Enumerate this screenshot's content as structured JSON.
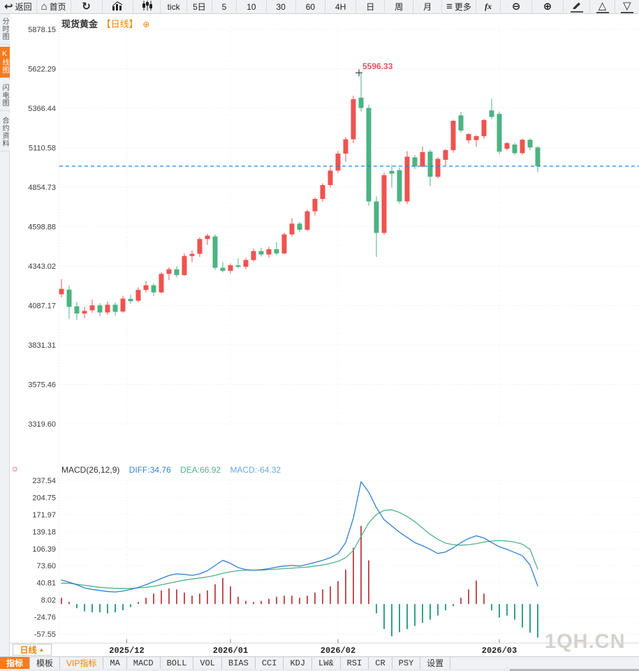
{
  "icons": {
    "back": "↩",
    "home": "⌂",
    "refresh": "↻",
    "more": "≡",
    "zoom_out": "⊖",
    "zoom_in": "⊕",
    "triangle_up": "△",
    "triangle_down": "▽",
    "sun": "☼",
    "add_circle": "⊕",
    "arrow_up": "▲"
  },
  "toolbar": {
    "items": [
      {
        "label": "返回"
      },
      {
        "label": "首页"
      },
      {
        "label": ""
      },
      {
        "label": ""
      },
      {
        "label": ""
      },
      {
        "label": "tick"
      },
      {
        "label": "5日"
      },
      {
        "label": "5"
      },
      {
        "label": "10"
      },
      {
        "label": "30"
      },
      {
        "label": "60"
      },
      {
        "label": "4H"
      },
      {
        "label": "日"
      },
      {
        "label": "周"
      },
      {
        "label": "月"
      },
      {
        "label": "更多"
      },
      {
        "label": "fx"
      }
    ]
  },
  "sidebar": {
    "tabs": [
      {
        "label": "分时图",
        "active": false
      },
      {
        "label": "K线图",
        "active": true
      },
      {
        "label": "闪电图",
        "active": false
      },
      {
        "label": "合约资料",
        "active": false
      }
    ]
  },
  "chart_header": {
    "symbol": "现货黄金",
    "period_tag": "【日线】"
  },
  "price_marker": {
    "value": "5596.33"
  },
  "macd_header": {
    "title": "MACD(26,12,9)",
    "diff_label": "DIFF:34.76",
    "dea_label": "DEA:66.92",
    "macd_label": "MACD:-64.32"
  },
  "xaxis": {
    "period": "日线"
  },
  "bottom_tabs": {
    "items": [
      {
        "label": "指标"
      },
      {
        "label": "模板"
      },
      {
        "label": "VIP指标"
      },
      {
        "label": "MA"
      },
      {
        "label": "MACD"
      },
      {
        "label": "BOLL"
      },
      {
        "label": "VOL"
      },
      {
        "label": "BIAS"
      },
      {
        "label": "CCI"
      },
      {
        "label": "KDJ"
      },
      {
        "label": "LW&"
      },
      {
        "label": "RSI"
      },
      {
        "label": "CR"
      },
      {
        "label": "PSY"
      },
      {
        "label": "设置"
      }
    ]
  },
  "watermark": "1QH.CN",
  "colors": {
    "up": "#ef5350",
    "down": "#4cb383",
    "diff_line": "#2f7fd0",
    "dea_line": "#4fb286",
    "hist_pos": "#c25053",
    "hist_neg": "#35a183",
    "current_price_line": "#1f83e8",
    "accent_orange": "#f47b20",
    "grid": "#e9e9e9",
    "axis_text": "#3c3c3c"
  },
  "chart_data": [
    {
      "type": "candlestick",
      "title": "现货黄金 日线",
      "y_ticks": [
        "5878.15",
        "5622.29",
        "5366.44",
        "5110.58",
        "4854.73",
        "4598.88",
        "4343.02",
        "4087.17",
        "3831.31",
        "3575.46",
        "3319.60"
      ],
      "ylim": [
        3319.6,
        5878.15
      ],
      "current_price": 4990.6,
      "high_marker": {
        "value": 5596.33,
        "candle_index": 39
      },
      "x_ticks": [
        {
          "label": "2025/12",
          "index": 8.5
        },
        {
          "label": "2026/01",
          "index": 22
        },
        {
          "label": "2026/02",
          "index": 36
        },
        {
          "label": "2026/03",
          "index": 57
        }
      ],
      "ohlc": [
        [
          4160,
          4258,
          4140,
          4195
        ],
        [
          4190,
          4215,
          4000,
          4078
        ],
        [
          4082,
          4110,
          3995,
          4035
        ],
        [
          4035,
          4080,
          4005,
          4052
        ],
        [
          4056,
          4125,
          4040,
          4088
        ],
        [
          4088,
          4102,
          4018,
          4042
        ],
        [
          4042,
          4112,
          4028,
          4092
        ],
        [
          4092,
          4108,
          4022,
          4046
        ],
        [
          4048,
          4150,
          4040,
          4132
        ],
        [
          4130,
          4158,
          4098,
          4115
        ],
        [
          4118,
          4205,
          4108,
          4188
        ],
        [
          4188,
          4245,
          4172,
          4218
        ],
        [
          4218,
          4232,
          4148,
          4172
        ],
        [
          4172,
          4302,
          4166,
          4292
        ],
        [
          4292,
          4335,
          4252,
          4322
        ],
        [
          4322,
          4342,
          4268,
          4284
        ],
        [
          4284,
          4425,
          4278,
          4408
        ],
        [
          4408,
          4445,
          4368,
          4422
        ],
        [
          4422,
          4530,
          4402,
          4518
        ],
        [
          4518,
          4552,
          4480,
          4540
        ],
        [
          4535,
          4548,
          4318,
          4332
        ],
        [
          4332,
          4368,
          4302,
          4312
        ],
        [
          4312,
          4360,
          4295,
          4348
        ],
        [
          4348,
          4392,
          4328,
          4338
        ],
        [
          4338,
          4395,
          4322,
          4382
        ],
        [
          4382,
          4455,
          4372,
          4440
        ],
        [
          4440,
          4462,
          4405,
          4418
        ],
        [
          4418,
          4468,
          4398,
          4452
        ],
        [
          4452,
          4498,
          4412,
          4425
        ],
        [
          4425,
          4560,
          4418,
          4548
        ],
        [
          4548,
          4652,
          4535,
          4618
        ],
        [
          4618,
          4630,
          4562,
          4578
        ],
        [
          4578,
          4710,
          4570,
          4698
        ],
        [
          4698,
          4788,
          4672,
          4778
        ],
        [
          4778,
          4880,
          4760,
          4868
        ],
        [
          4868,
          4995,
          4852,
          4962
        ],
        [
          4962,
          5090,
          4948,
          5072
        ],
        [
          5072,
          5180,
          5020,
          5165
        ],
        [
          5165,
          5448,
          5140,
          5425
        ],
        [
          5435,
          5596.33,
          5345,
          5368
        ],
        [
          5368,
          5390,
          4735,
          4762
        ],
        [
          4762,
          4795,
          4402,
          4558
        ],
        [
          4558,
          4948,
          4545,
          4932
        ],
        [
          4960,
          4998,
          4852,
          4942
        ],
        [
          4965,
          4982,
          4748,
          4762
        ],
        [
          4762,
          5088,
          4745,
          5052
        ],
        [
          5048,
          5062,
          4972,
          4988
        ],
        [
          4988,
          5118,
          4982,
          5082
        ],
        [
          5085,
          5098,
          4862,
          4922
        ],
        [
          4922,
          5048,
          4912,
          5038
        ],
        [
          5032,
          5102,
          4995,
          5095
        ],
        [
          5095,
          5292,
          5078,
          5285
        ],
        [
          5320,
          5342,
          5208,
          5222
        ],
        [
          5158,
          5205,
          5138,
          5199
        ],
        [
          5160,
          5192,
          5118,
          5185
        ],
        [
          5185,
          5298,
          5168,
          5290
        ],
        [
          5352,
          5428,
          5295,
          5310
        ],
        [
          5330,
          5345,
          5068,
          5085
        ],
        [
          5104,
          5148,
          5092,
          5140
        ],
        [
          5131,
          5142,
          5062,
          5075
        ],
        [
          5075,
          5170,
          5065,
          5162
        ],
        [
          5162,
          5170,
          5095,
          5112
        ],
        [
          5112,
          5120,
          4952,
          4990
        ]
      ]
    },
    {
      "type": "macd",
      "title": "MACD(26,12,9)",
      "params": [
        26,
        12,
        9
      ],
      "y_ticks": [
        "237.54",
        "204.75",
        "171.97",
        "139.18",
        "106.39",
        "73.60",
        "40.81",
        "8.02",
        "-24.76",
        "-57.55"
      ],
      "ylim": [
        -57.55,
        237.54
      ],
      "diff_last": 34.76,
      "dea_last": 66.92,
      "macd_last": -64.32,
      "diff": [
        46,
        42,
        37,
        31,
        28,
        26,
        24,
        23,
        25,
        28,
        32,
        37,
        43,
        49,
        55,
        58,
        57,
        55,
        58,
        64,
        74,
        84,
        78,
        70,
        66,
        65,
        66,
        68,
        71,
        73,
        74,
        73,
        76,
        80,
        84,
        89,
        97,
        118,
        165,
        235,
        215,
        185,
        162,
        150,
        138,
        128,
        118,
        112,
        105,
        97,
        100,
        108,
        118,
        126,
        131,
        127,
        118,
        110,
        105,
        99,
        93,
        75,
        34.76
      ],
      "dea": [
        40,
        40,
        38,
        36,
        34,
        32,
        31,
        30,
        30,
        30,
        31,
        32,
        34,
        37,
        40,
        43,
        46,
        48,
        50,
        52,
        55,
        59,
        62,
        64,
        65,
        65,
        65,
        66,
        67,
        68,
        69,
        70,
        71,
        73,
        75,
        78,
        82,
        89,
        103,
        130,
        156,
        172,
        180,
        181,
        176,
        168,
        158,
        146,
        134,
        124,
        117,
        114,
        113,
        114,
        116,
        119,
        121,
        122,
        121,
        119,
        115,
        105,
        66.92
      ],
      "hist": [
        12,
        4,
        -8,
        -14,
        -16,
        -16,
        -18,
        -16,
        -12,
        -6,
        4,
        12,
        20,
        26,
        30,
        28,
        22,
        16,
        20,
        26,
        38,
        50,
        34,
        14,
        6,
        4,
        6,
        10,
        14,
        16,
        16,
        12,
        16,
        22,
        28,
        34,
        44,
        66,
        108,
        150,
        84,
        -18,
        -48,
        -62,
        -54,
        -48,
        -42,
        -36,
        -30,
        -22,
        -12,
        -4,
        12,
        28,
        45,
        20,
        -12,
        -26,
        -22,
        -30,
        -45,
        -55,
        -64.32
      ]
    }
  ]
}
